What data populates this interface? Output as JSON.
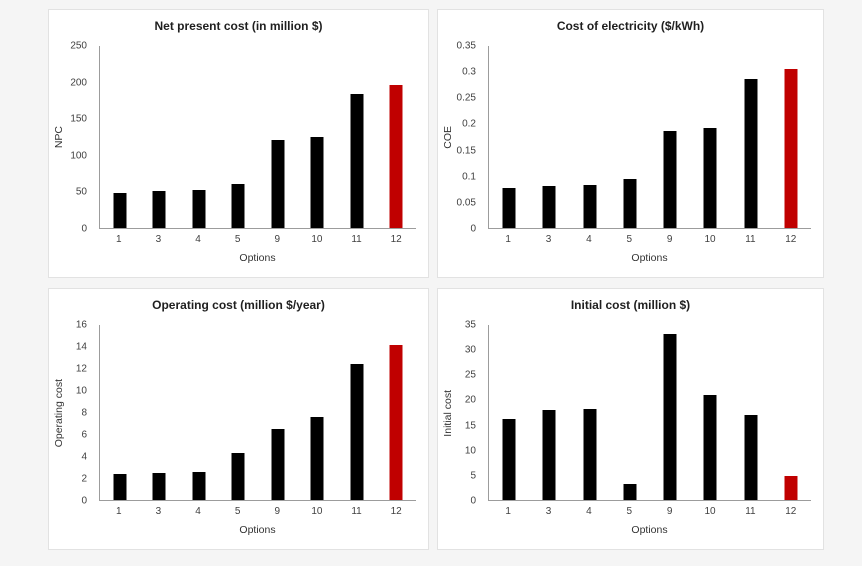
{
  "colors": {
    "bar": "#000000",
    "highlight": "#c00000",
    "axis_line": "#9c9c9c",
    "panel_border": "#e2e2e2",
    "panel_background": "#ffffff",
    "page_background": "#f5f5f5",
    "title_text": "#1f1f1f",
    "tick_text": "#404040"
  },
  "chart_data": [
    {
      "type": "bar",
      "title": "Net present cost (in million $)",
      "ylabel": "NPC",
      "xlabel": "Options",
      "categories": [
        "1",
        "3",
        "4",
        "5",
        "9",
        "10",
        "11",
        "12"
      ],
      "values": [
        48,
        51,
        52,
        61,
        121,
        125,
        184,
        196
      ],
      "ylim": [
        0,
        250
      ],
      "yticks": [
        "0",
        "50",
        "100",
        "150",
        "200",
        "250"
      ],
      "grid": false,
      "legend": "none",
      "highlight_index": 7
    },
    {
      "type": "bar",
      "title": "Cost of electricity ($/kWh)",
      "ylabel": "COE",
      "xlabel": "Options",
      "categories": [
        "1",
        "3",
        "4",
        "5",
        "9",
        "10",
        "11",
        "12"
      ],
      "values": [
        0.076,
        0.08,
        0.082,
        0.095,
        0.187,
        0.193,
        0.287,
        0.306
      ],
      "ylim": [
        0,
        0.35
      ],
      "yticks": [
        "0",
        "0.05",
        "0.1",
        "0.15",
        "0.2",
        "0.25",
        "0.3",
        "0.35"
      ],
      "grid": false,
      "legend": "none",
      "highlight_index": 7
    },
    {
      "type": "bar",
      "title": "Operating cost (million $/year)",
      "ylabel": "Operating cost",
      "xlabel": "Options",
      "categories": [
        "1",
        "3",
        "4",
        "5",
        "9",
        "10",
        "11",
        "12"
      ],
      "values": [
        2.4,
        2.5,
        2.6,
        4.3,
        6.5,
        7.6,
        12.4,
        14.2
      ],
      "ylim": [
        0,
        16
      ],
      "yticks": [
        "0",
        "2",
        "4",
        "6",
        "8",
        "10",
        "12",
        "14",
        "16"
      ],
      "grid": false,
      "legend": "none",
      "highlight_index": 7
    },
    {
      "type": "bar",
      "title": "Initial cost (million $)",
      "ylabel": "Initial cost",
      "xlabel": "Options",
      "categories": [
        "1",
        "3",
        "4",
        "5",
        "9",
        "10",
        "11",
        "12"
      ],
      "values": [
        16.2,
        18,
        18.2,
        3.2,
        33.3,
        21,
        17,
        4.8
      ],
      "ylim": [
        0,
        35
      ],
      "yticks": [
        "0",
        "5",
        "10",
        "15",
        "20",
        "25",
        "30",
        "35"
      ],
      "grid": false,
      "legend": "none",
      "highlight_index": 7
    }
  ]
}
